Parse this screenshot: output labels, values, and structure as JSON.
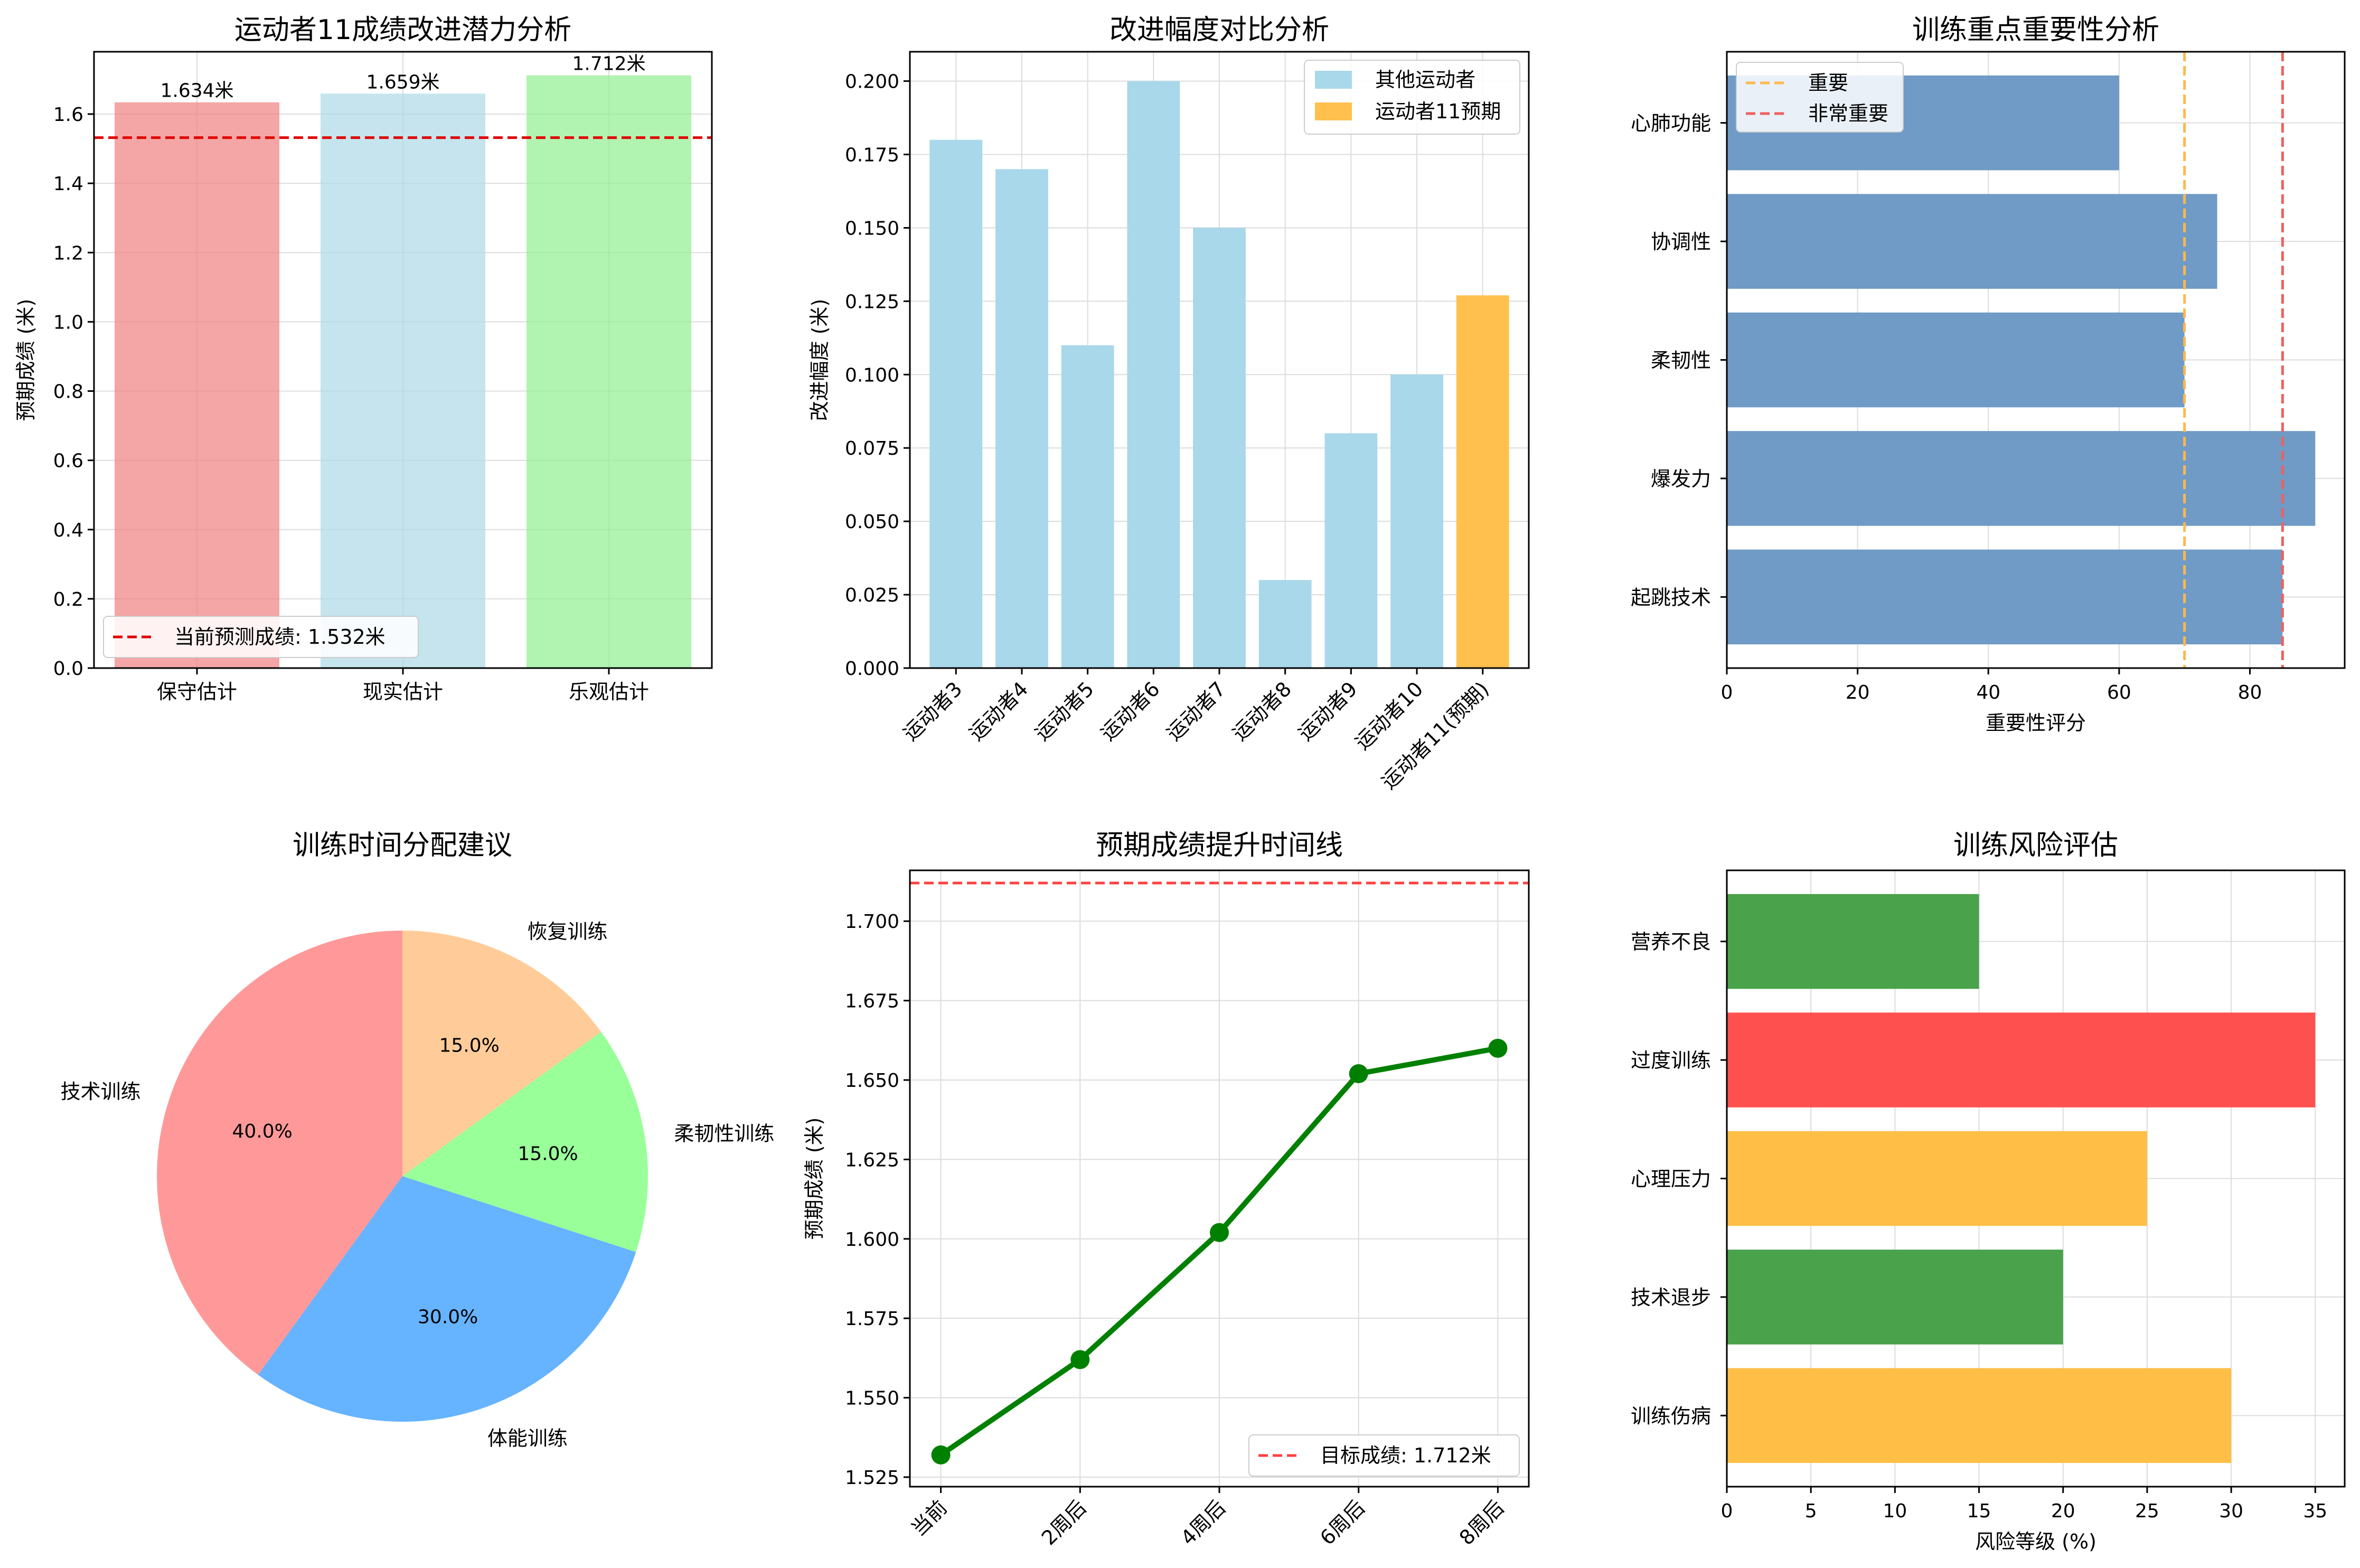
{
  "chart_data": [
    {
      "type": "bar",
      "title": "运动者11成绩改进潜力分析",
      "xlabel": "",
      "ylabel": "预期成绩 (米)",
      "categories": [
        "保守估计",
        "现实估计",
        "乐观估计"
      ],
      "values": [
        1.634,
        1.659,
        1.712
      ],
      "value_labels": [
        "1.634米",
        "1.659米",
        "1.712米"
      ],
      "bar_colors": [
        "#f08080",
        "#add8e6",
        "#90ee90"
      ],
      "ylim": [
        0,
        1.78
      ],
      "yticks": [
        0.0,
        0.2,
        0.4,
        0.6,
        0.8,
        1.0,
        1.2,
        1.4,
        1.6
      ],
      "ytick_labels": [
        "0.0",
        "0.2",
        "0.4",
        "0.6",
        "0.8",
        "1.0",
        "1.2",
        "1.4",
        "1.6"
      ],
      "reference_line": {
        "value": 1.532,
        "label": "当前预测成绩: 1.532米",
        "color": "#e00000"
      },
      "grid": true,
      "legend_position": "lower-left"
    },
    {
      "type": "bar",
      "title": "改进幅度对比分析",
      "xlabel": "",
      "ylabel": "改进幅度 (米)",
      "categories": [
        "运动者3",
        "运动者4",
        "运动者5",
        "运动者6",
        "运动者7",
        "运动者8",
        "运动者9",
        "运动者10",
        "运动者11(预期)"
      ],
      "values": [
        0.18,
        0.17,
        0.11,
        0.2,
        0.15,
        0.03,
        0.08,
        0.1,
        0.127
      ],
      "bar_colors": [
        "#a8d8ea",
        "#a8d8ea",
        "#a8d8ea",
        "#a8d8ea",
        "#a8d8ea",
        "#a8d8ea",
        "#a8d8ea",
        "#a8d8ea",
        "#ffc04d"
      ],
      "legend": [
        {
          "name": "其他运动者",
          "color": "#a8d8ea"
        },
        {
          "name": "运动者11预期",
          "color": "#ffc04d"
        }
      ],
      "ylim": [
        0,
        0.21
      ],
      "yticks": [
        0.0,
        0.025,
        0.05,
        0.075,
        0.1,
        0.125,
        0.15,
        0.175,
        0.2
      ],
      "ytick_labels": [
        "0.000",
        "0.025",
        "0.050",
        "0.075",
        "0.100",
        "0.125",
        "0.150",
        "0.175",
        "0.200"
      ],
      "grid": true,
      "legend_position": "top-right"
    },
    {
      "type": "bar",
      "orientation": "horizontal",
      "title": "训练重点重要性分析",
      "xlabel": "重要性评分",
      "ylabel": "",
      "categories": [
        "起跳技术",
        "爆发力",
        "柔韧性",
        "协调性",
        "心肺功能"
      ],
      "values": [
        85,
        90,
        70,
        75,
        60
      ],
      "bar_color": "#6f9bc6",
      "xlim": [
        0,
        94.5
      ],
      "xticks": [
        0,
        20,
        40,
        60,
        80
      ],
      "xtick_labels": [
        "0",
        "20",
        "40",
        "60",
        "80"
      ],
      "reference_lines": [
        {
          "value": 70,
          "label": "重要",
          "color": "#ffb84d"
        },
        {
          "value": 85,
          "label": "非常重要",
          "color": "#f06060"
        }
      ],
      "grid": true,
      "legend_position": "top-left"
    },
    {
      "type": "pie",
      "title": "训练时间分配建议",
      "labels": [
        "技术训练",
        "体能训练",
        "柔韧性训练",
        "恢复训练"
      ],
      "values": [
        40,
        30,
        15,
        15
      ],
      "percent_labels": [
        "40.0%",
        "30.0%",
        "15.0%",
        "15.0%"
      ],
      "colors": [
        "#ff9999",
        "#66b3ff",
        "#99ff99",
        "#ffcc99"
      ]
    },
    {
      "type": "line",
      "title": "预期成绩提升时间线",
      "xlabel": "",
      "ylabel": "预期成绩 (米)",
      "x": [
        "当前",
        "2周后",
        "4周后",
        "6周后",
        "8周后"
      ],
      "y": [
        1.532,
        1.562,
        1.602,
        1.652,
        1.66
      ],
      "line_color": "#008000",
      "ylim": [
        1.522,
        1.716
      ],
      "yticks": [
        1.525,
        1.55,
        1.575,
        1.6,
        1.625,
        1.65,
        1.675,
        1.7
      ],
      "ytick_labels": [
        "1.525",
        "1.550",
        "1.575",
        "1.600",
        "1.625",
        "1.650",
        "1.675",
        "1.700"
      ],
      "reference_line": {
        "value": 1.712,
        "label": "目标成绩: 1.712米",
        "color": "#ff4040"
      },
      "grid": true,
      "legend_position": "lower-right"
    },
    {
      "type": "bar",
      "orientation": "horizontal",
      "title": "训练风险评估",
      "xlabel": "风险等级 (%)",
      "ylabel": "",
      "categories": [
        "训练伤病",
        "技术退步",
        "心理压力",
        "过度训练",
        "营养不良"
      ],
      "values": [
        30,
        20,
        25,
        35,
        15
      ],
      "bar_colors": [
        "#ffbf47",
        "#4aa24a",
        "#ffbf47",
        "#ff5050",
        "#4aa24a"
      ],
      "xlim": [
        0,
        36.75
      ],
      "xticks": [
        0,
        5,
        10,
        15,
        20,
        25,
        30,
        35
      ],
      "xtick_labels": [
        "0",
        "5",
        "10",
        "15",
        "20",
        "25",
        "30",
        "35"
      ],
      "grid": true
    }
  ]
}
